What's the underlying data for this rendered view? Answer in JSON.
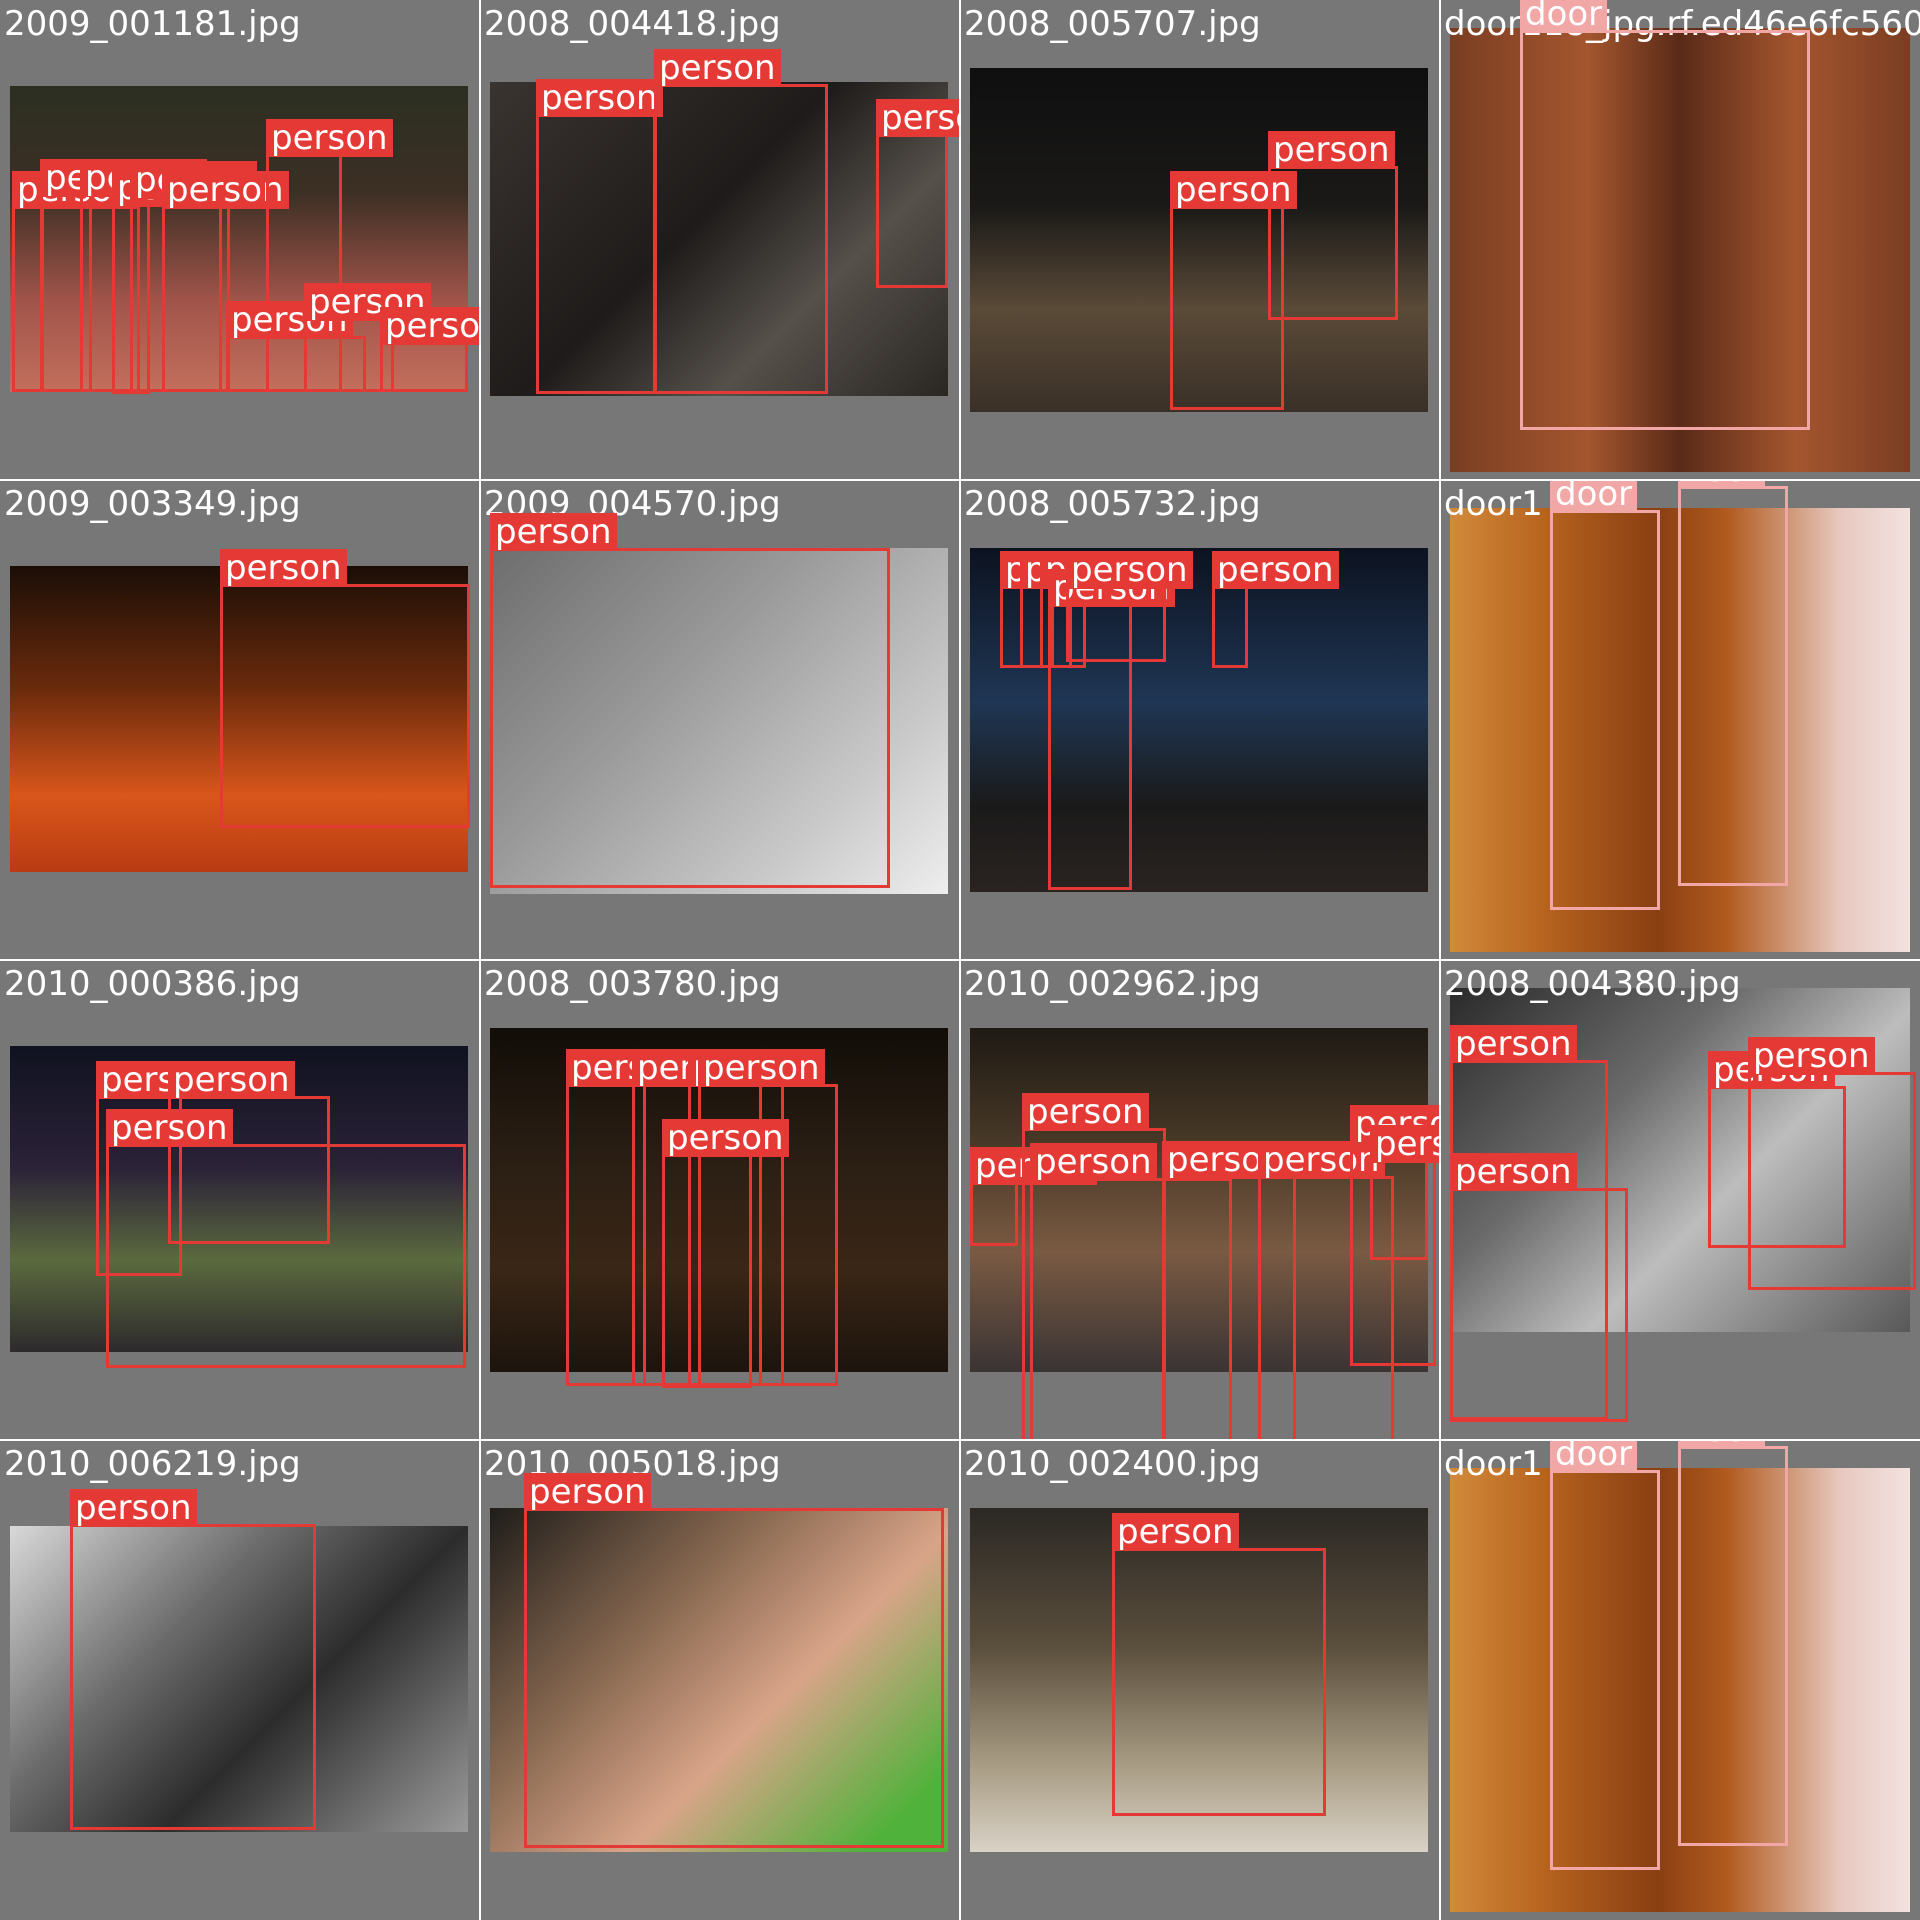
{
  "colors": {
    "tile_bg": "#777777",
    "person_box": "#e53935",
    "door_box": "#f2a7a7",
    "label_text": "#ffffff"
  },
  "tiles": [
    {
      "file": "2009_001181.jpg",
      "photo_bg": "linear-gradient(180deg,#2b2f22 0%,#3d2f24 35%,#a0544a 70%,#c36f5c 100%)",
      "labels": [
        "person",
        "person",
        "person",
        "person",
        "person",
        "person",
        "person",
        "person",
        "person",
        "person"
      ]
    },
    {
      "file": "2008_004418.jpg",
      "photo_bg": "linear-gradient(135deg,#3a3430 0%,#1e1b1a 45%,#55504a 70%,#2a2622 100%)",
      "labels": [
        "person",
        "person",
        "person"
      ]
    },
    {
      "file": "2008_005707.jpg",
      "photo_bg": "linear-gradient(180deg,#0f0f10 0%,#1a1917 40%,#5a4a38 70%,#3a3027 100%)",
      "labels": [
        "person",
        "person"
      ]
    },
    {
      "file": "door118_jpg.rf.ed46e6fc560",
      "photo_bg": "linear-gradient(90deg,#7a3d22 0%,#a4562e 30%,#5a2a18 50%,#a4562e 75%,#7a3d22 100%)",
      "labels": [
        "door"
      ]
    },
    {
      "file": "2009_003349.jpg",
      "photo_bg": "linear-gradient(180deg,#1b0e07 0%,#6a2a0c 40%,#d9561b 75%,#b93b12 100%)",
      "labels": [
        "person"
      ]
    },
    {
      "file": "2009_004570.jpg",
      "photo_bg": "linear-gradient(135deg,#6d6d6d 0%,#9a9a9a 40%,#c9c9c9 75%,#eeeeee 100%)",
      "labels": [
        "person"
      ]
    },
    {
      "file": "2008_005732.jpg",
      "photo_bg": "linear-gradient(180deg,#0c1220 0%,#1f3654 45%,#1a1a1a 75%,#2a2320 100%)",
      "labels": [
        "person",
        "person",
        "person",
        "person",
        "person",
        "person"
      ]
    },
    {
      "file": "door1",
      "photo_bg": "linear-gradient(90deg,#d28a3a 0%,#b7641f 20%,#8a3f12 45%,#b05a1e 60%,#e7c9c0 85%,#f3e2df 100%)",
      "labels": [
        "door",
        "door"
      ]
    },
    {
      "file": "2010_000386.jpg",
      "photo_bg": "linear-gradient(180deg,#101220 0%,#2b2238 40%,#5b6a3e 70%,#2d2a2c 100%)",
      "labels": [
        "person",
        "person",
        "person"
      ]
    },
    {
      "file": "2008_003780.jpg",
      "photo_bg": "linear-gradient(180deg,#120d08 0%,#2b1f14 40%,#3a2616 70%,#1c140d 100%)",
      "labels": [
        "person",
        "person",
        "person",
        "person",
        "person"
      ]
    },
    {
      "file": "2010_002962.jpg",
      "photo_bg": "linear-gradient(180deg,#1f1a14 0%,#4a3a28 35%,#7a5a42 65%,#3a3434 100%)",
      "labels": [
        "person",
        "person",
        "person",
        "person",
        "person",
        "person",
        "person"
      ]
    },
    {
      "file": "2008_004380.jpg",
      "photo_bg": "linear-gradient(135deg,#2a2a2a 0%,#6a6a6a 35%,#bdbdbd 60%,#585858 100%)",
      "labels": [
        "person",
        "person",
        "person",
        "person"
      ]
    },
    {
      "file": "2010_006219.jpg",
      "photo_bg": "linear-gradient(135deg,#d9d9d9 0%,#6b6b6b 35%,#2c2c2c 60%,#9a9a9a 100%)",
      "labels": [
        "person"
      ]
    },
    {
      "file": "2010_005018.jpg",
      "photo_bg": "linear-gradient(135deg,#1f1d1a 0%,#8a6a52 35%,#d9a489 60%,#4fb23a 90%)",
      "labels": [
        "person"
      ]
    },
    {
      "file": "2010_002400.jpg",
      "photo_bg": "linear-gradient(180deg,#2b2824 0%,#5a4e3c 40%,#a89c84 75%,#d9d2c6 100%)",
      "labels": [
        "person"
      ]
    },
    {
      "file": "door1",
      "photo_bg": "linear-gradient(90deg,#d28a3a 0%,#b7641f 20%,#8a3f12 45%,#b05a1e 60%,#e7c9c0 85%,#f3e2df 100%)",
      "labels": [
        "door",
        "door"
      ]
    }
  ]
}
